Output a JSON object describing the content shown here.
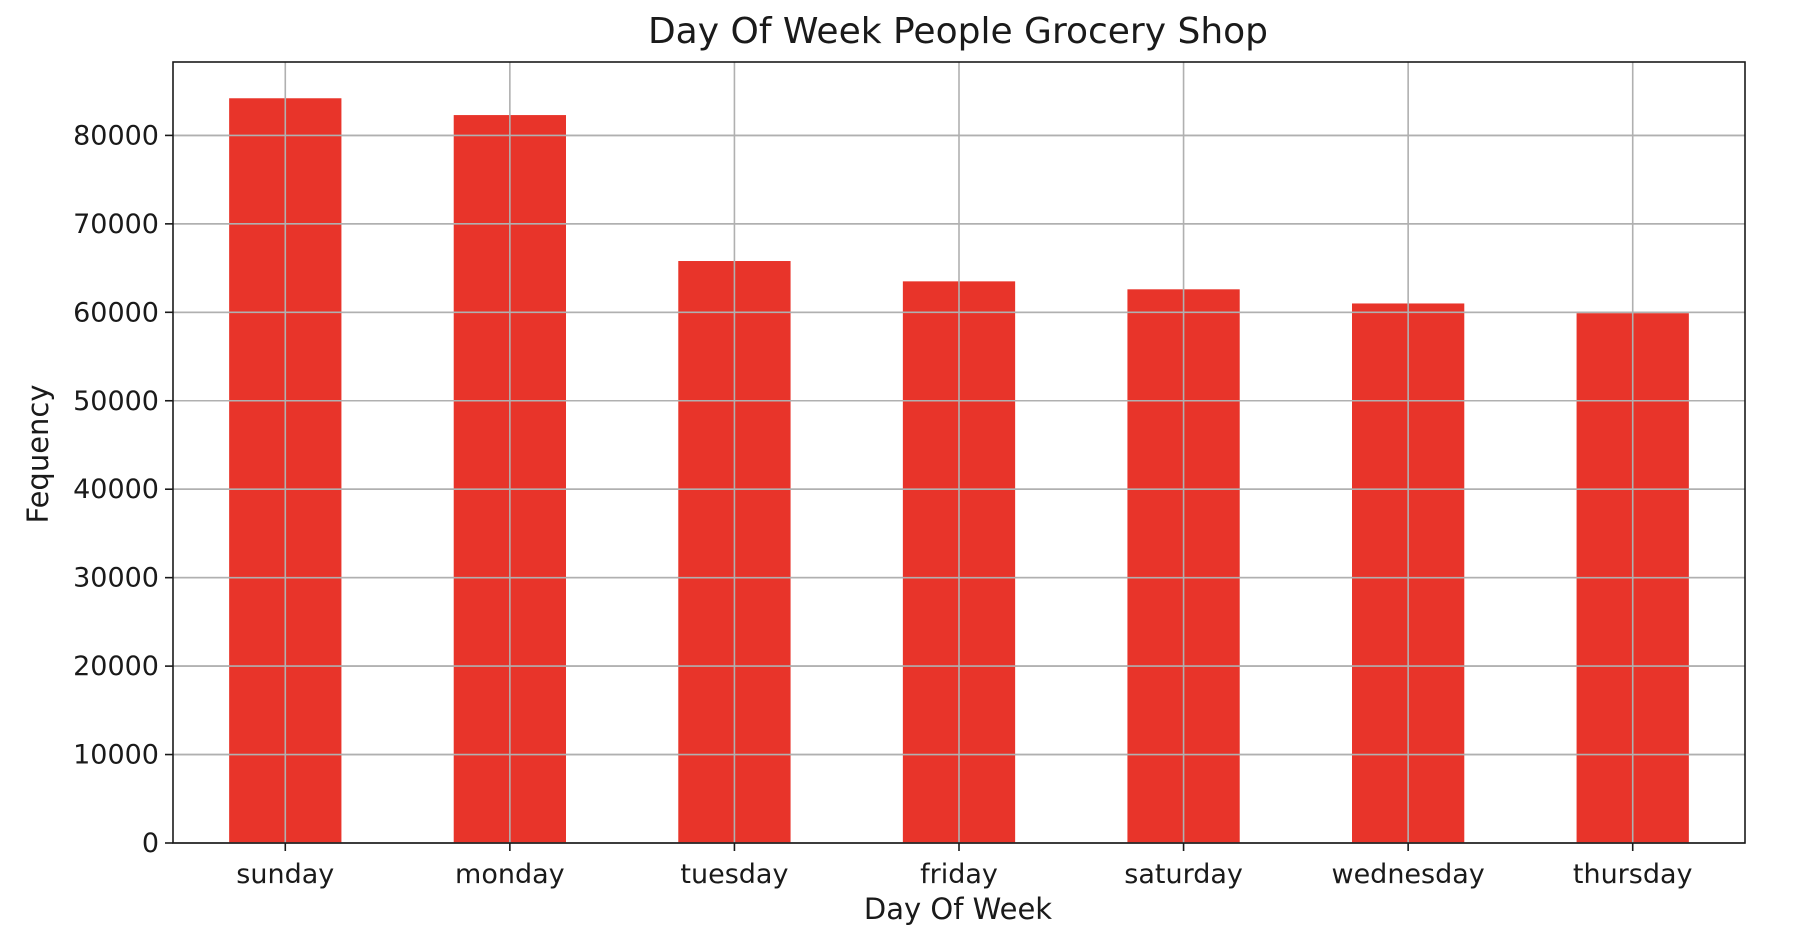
{
  "chart_data": {
    "type": "bar",
    "title": "Day Of Week People Grocery Shop",
    "xlabel": "Day Of Week",
    "ylabel": "Fequency",
    "categories": [
      "sunday",
      "monday",
      "tuesday",
      "friday",
      "saturday",
      "wednesday",
      "thursday"
    ],
    "values": [
      84200,
      82300,
      65800,
      63500,
      62600,
      61000,
      59900
    ],
    "ylim": [
      0,
      88300
    ],
    "yticks": [
      0,
      10000,
      20000,
      30000,
      40000,
      50000,
      60000,
      70000,
      80000
    ],
    "grid": true,
    "legend": "none",
    "bar_color": "#e8342a"
  }
}
